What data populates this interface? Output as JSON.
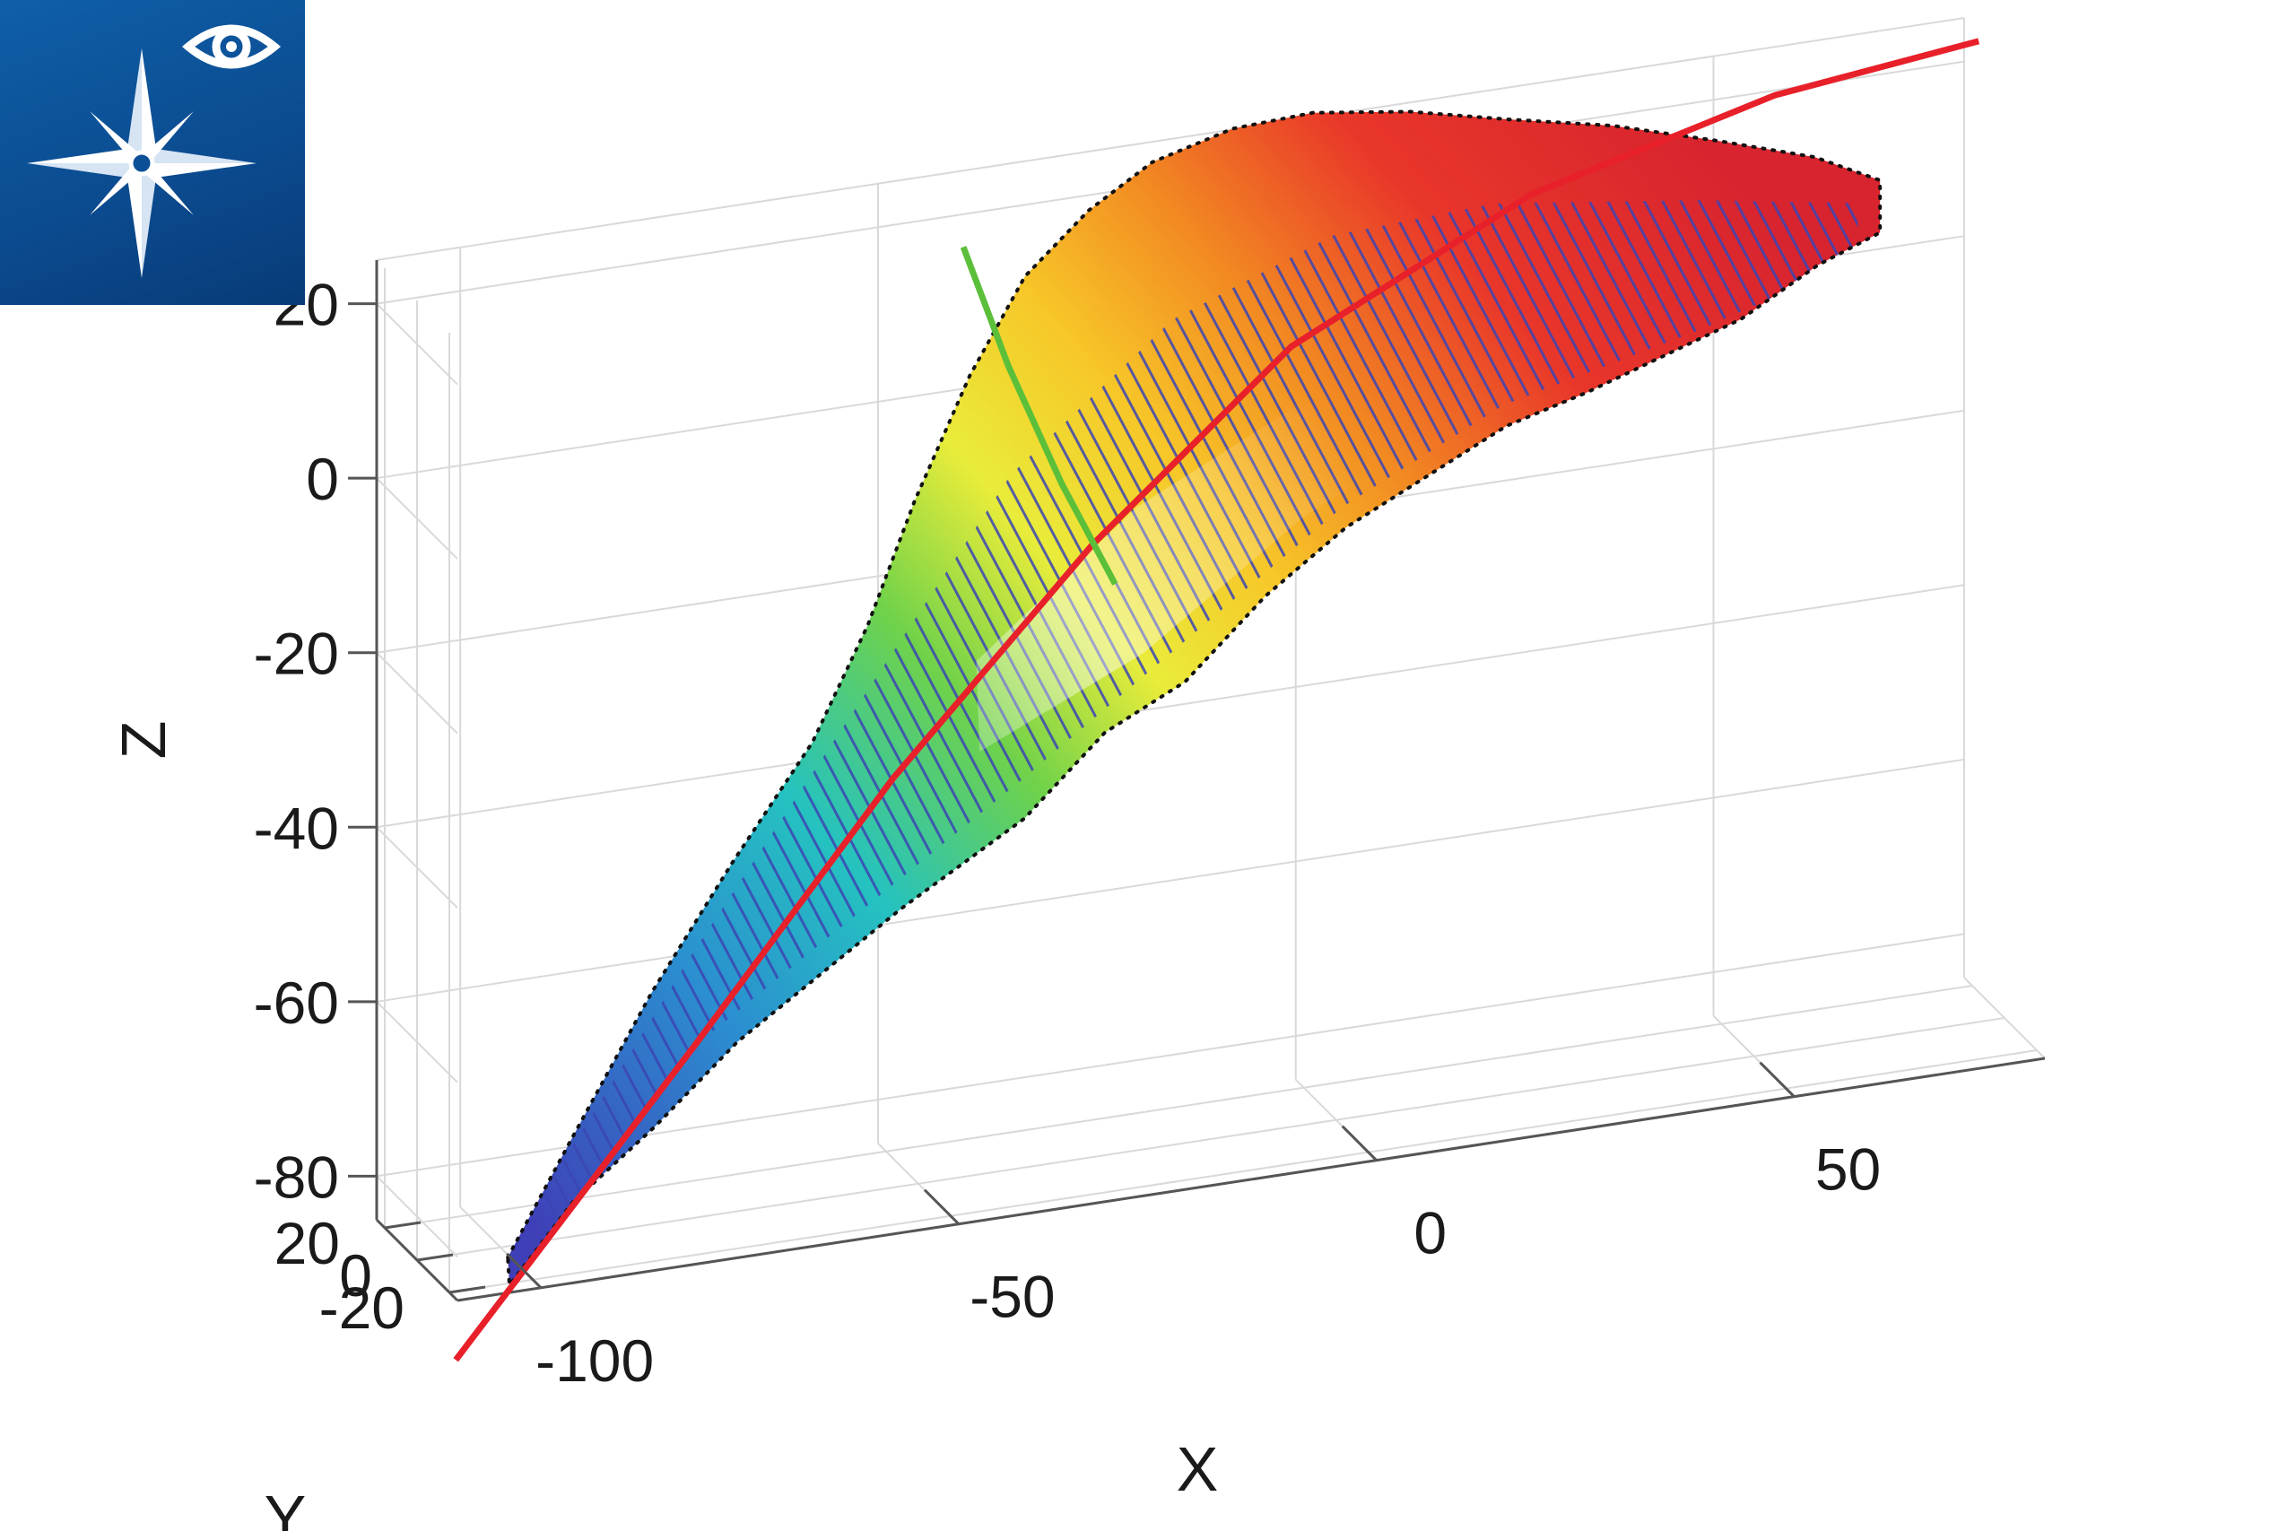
{
  "logo": {
    "icons": [
      "eye-icon",
      "compass-star-icon"
    ],
    "background": "#0b4f96"
  },
  "chart_data": {
    "type": "surface",
    "title": "",
    "xlabel": "X",
    "ylabel": "Y",
    "zlabel": "Z",
    "xlim": [
      -110,
      80
    ],
    "ylim": [
      -25,
      25
    ],
    "zlim": [
      -85,
      25
    ],
    "x_ticks": [
      "-100",
      "-50",
      "0",
      "50"
    ],
    "y_ticks": [
      "20",
      "0",
      "-20"
    ],
    "z_ticks": [
      "20",
      "0",
      "-20",
      "-40",
      "-60",
      "-80"
    ],
    "grid": true,
    "colormap": "jet",
    "series": [
      {
        "type": "surface",
        "color_by": "z"
      },
      {
        "type": "fit-line",
        "color": "#e8202a"
      },
      {
        "type": "cross-section",
        "color": "#5bbf3a"
      },
      {
        "type": "hatch-lines",
        "color": "#3a44b0"
      }
    ]
  }
}
